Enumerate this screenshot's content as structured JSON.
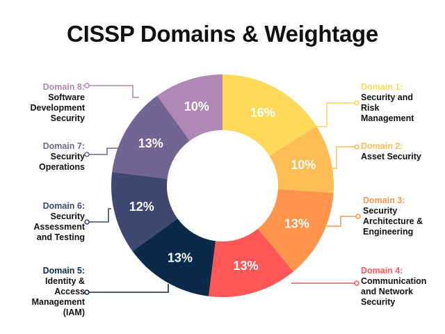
{
  "title": "CISSP Domains & Weightage",
  "chart_data": {
    "type": "pie",
    "donut": true,
    "title": "CISSP Domains & Weightage",
    "unit": "%",
    "slices": [
      {
        "domain": "Domain 1:",
        "name": "Security and\nRisk\nManagement",
        "label": "16%",
        "value": 16,
        "color": "#FFD95A"
      },
      {
        "domain": "Domain 2:",
        "name": "Asset Security",
        "label": "10%",
        "value": 10,
        "color": "#FFBE55"
      },
      {
        "domain": "Domain 3:",
        "name": "Security\nArchitecture &\nEngineering",
        "label": "13%",
        "value": 13,
        "color": "#FF944A"
      },
      {
        "domain": "Domain 4:",
        "name": "Communication\nand Network\nSecurity",
        "label": "13%",
        "value": 13,
        "color": "#FF5757"
      },
      {
        "domain": "Domain 5:",
        "name": "Identity &\nAccess\nManagement\n(IAM)",
        "label": "13%",
        "value": 13,
        "color": "#0B2A4A"
      },
      {
        "domain": "Domain 6:",
        "name": "Security\nAssessment\nand Testing",
        "label": "12%",
        "value": 12,
        "color": "#3E4870"
      },
      {
        "domain": "Domain 7:",
        "name": "Security\nOperations",
        "label": "13%",
        "value": 13,
        "color": "#736593"
      },
      {
        "domain": "Domain 8:",
        "name": "Software\nDevelopment\nSecurity",
        "label": "10%",
        "value": 10,
        "color": "#B087B5"
      }
    ]
  }
}
